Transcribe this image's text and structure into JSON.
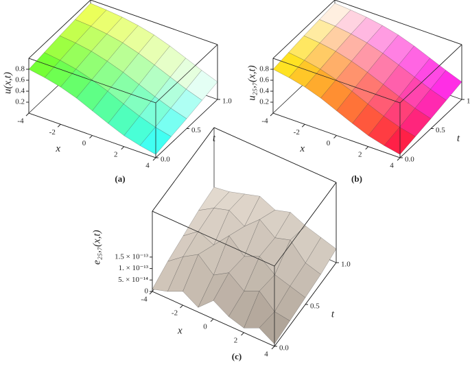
{
  "chart_data": [
    {
      "type": "surface",
      "panel_label": "(a)",
      "xlabel": "x",
      "ylabel": "t",
      "zlabel": "u(x,t)",
      "x": [
        -4,
        -3,
        -2,
        -1,
        0,
        1,
        2,
        3,
        4
      ],
      "t": [
        0,
        0.25,
        0.5,
        0.75,
        1
      ],
      "z": [
        [
          0.8,
          0.75,
          0.68,
          0.58,
          0.45,
          0.32,
          0.2,
          0.12,
          0.06
        ],
        [
          0.84,
          0.8,
          0.74,
          0.65,
          0.54,
          0.41,
          0.29,
          0.19,
          0.12
        ],
        [
          0.88,
          0.85,
          0.8,
          0.72,
          0.62,
          0.5,
          0.38,
          0.27,
          0.18
        ],
        [
          0.91,
          0.89,
          0.85,
          0.79,
          0.7,
          0.59,
          0.47,
          0.35,
          0.25
        ],
        [
          0.94,
          0.92,
          0.89,
          0.84,
          0.77,
          0.67,
          0.55,
          0.43,
          0.32
        ]
      ],
      "xlim": [
        -4,
        4
      ],
      "ylim": [
        0,
        1
      ],
      "zlim": [
        0,
        1
      ],
      "xticks": [
        -4,
        -2,
        0,
        2,
        4
      ],
      "yticks": [
        {
          "value": 0,
          "label": "0.0"
        },
        {
          "value": 0.5,
          "label": "0.5"
        },
        {
          "value": 1,
          "label": "1.0"
        }
      ],
      "zticks": [
        0.2,
        0.4,
        0.6,
        0.8
      ],
      "corner_colors": [
        "#66ff22",
        "#ffff55",
        "#22ffff",
        "#ffffff"
      ]
    },
    {
      "type": "surface",
      "panel_label": "(b)",
      "xlabel": "x",
      "ylabel": "t",
      "zlabel": "u₂₅,₇(x,t)",
      "x": [
        -4,
        -3,
        -2,
        -1,
        0,
        1,
        2,
        3,
        4
      ],
      "t": [
        0,
        0.25,
        0.5,
        0.75,
        1
      ],
      "z": [
        [
          0.8,
          0.75,
          0.68,
          0.58,
          0.45,
          0.32,
          0.2,
          0.12,
          0.06
        ],
        [
          0.84,
          0.8,
          0.74,
          0.65,
          0.54,
          0.41,
          0.29,
          0.19,
          0.12
        ],
        [
          0.88,
          0.85,
          0.8,
          0.72,
          0.62,
          0.5,
          0.38,
          0.27,
          0.18
        ],
        [
          0.91,
          0.89,
          0.85,
          0.79,
          0.7,
          0.59,
          0.47,
          0.35,
          0.25
        ],
        [
          0.94,
          0.92,
          0.89,
          0.84,
          0.77,
          0.67,
          0.55,
          0.43,
          0.32
        ]
      ],
      "xlim": [
        -4,
        4
      ],
      "ylim": [
        0,
        1
      ],
      "zlim": [
        0,
        1
      ],
      "xticks": [
        -4,
        -2,
        0,
        2,
        4
      ],
      "yticks": [
        {
          "value": 0,
          "label": "0.0"
        },
        {
          "value": 0.5,
          "label": "0.5"
        },
        {
          "value": 1,
          "label": "1.0"
        }
      ],
      "zticks": [
        0.2,
        0.4,
        0.6,
        0.8
      ],
      "corner_colors": [
        "#ffee00",
        "#ffffff",
        "#ff1030",
        "#ff22ff"
      ]
    },
    {
      "type": "surface",
      "panel_label": "(c)",
      "xlabel": "x",
      "ylabel": "t",
      "zlabel": "e₂₅,₇(x,t)",
      "x": [
        -4,
        -3,
        -2,
        -1,
        0,
        1,
        2,
        3,
        4
      ],
      "t": [
        0,
        0.25,
        0.5,
        0.75,
        1
      ],
      "z": [
        [
          1e-14,
          3e-14,
          6e-14,
          2e-14,
          8e-14,
          4e-14,
          2e-14,
          5e-14,
          1e-14
        ],
        [
          4e-14,
          9e-14,
          1.3e-13,
          7e-14,
          1.1e-13,
          6e-14,
          9e-14,
          3e-14,
          2e-14
        ],
        [
          6e-14,
          1.1e-13,
          8e-14,
          1.5e-13,
          9e-14,
          1.2e-13,
          7e-14,
          5e-14,
          3e-14
        ],
        [
          8e-14,
          1.2e-13,
          1.4e-13,
          1e-13,
          1.6e-13,
          1.1e-13,
          1.3e-13,
          6e-14,
          4e-14
        ],
        [
          9e-14,
          1e-13,
          1.2e-13,
          1.4e-13,
          1.1e-13,
          1.3e-13,
          1e-13,
          8e-14,
          6e-14
        ]
      ],
      "xlim": [
        -4,
        4
      ],
      "ylim": [
        0,
        1
      ],
      "zlim": [
        0,
        3.5e-13
      ],
      "xticks": [
        -4,
        -2,
        0,
        2,
        4
      ],
      "yticks": [
        {
          "value": 0,
          "label": "0.0"
        },
        {
          "value": 0.5,
          "label": "0.5"
        },
        {
          "value": 1,
          "label": "1.0"
        }
      ],
      "zticks": [
        0,
        {
          "value": 5e-14,
          "label": "5. × 10⁻¹⁴"
        },
        {
          "value": 1e-13,
          "label": "1. × 10⁻¹³"
        },
        {
          "value": 1.5e-13,
          "label": "1.5 × 10⁻¹³"
        }
      ],
      "corner_colors": [
        "#cfc4b8",
        "#e6ddd2",
        "#a89c90",
        "#d8cfc4"
      ]
    }
  ]
}
